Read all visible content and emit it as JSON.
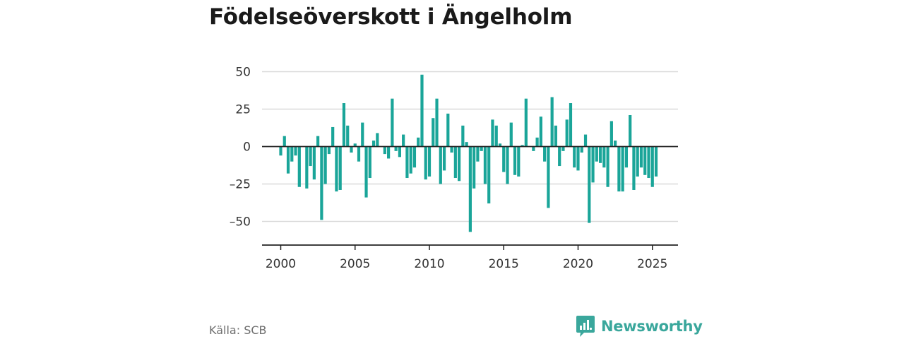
{
  "title": "Födelseöverskott i Ängelholm",
  "source": "Källa: SCB",
  "brand": {
    "name": "Newsworthy",
    "icon": "newsworthy-logo-icon",
    "color": "#3aa79c"
  },
  "colors": {
    "bar": "#1aa599",
    "grid": "#d9d9d9",
    "axis": "#222222"
  },
  "chart_data": {
    "type": "bar",
    "title": "Födelseöverskott i Ängelholm",
    "xlabel": "",
    "ylabel": "",
    "x_ticks": [
      "2000",
      "2005",
      "2010",
      "2015",
      "2020",
      "2025"
    ],
    "y_ticks": [
      "50",
      "25",
      "0",
      "–25",
      "–50"
    ],
    "ylim": [
      -65,
      55
    ],
    "grid": true,
    "granularity": "quarterly",
    "series": [
      {
        "x": [
          "2000Q1",
          "2000Q2",
          "2000Q3",
          "2000Q4",
          "2001Q1",
          "2001Q2",
          "2001Q3",
          "2001Q4",
          "2002Q1",
          "2002Q2",
          "2002Q3",
          "2002Q4",
          "2003Q1",
          "2003Q2",
          "2003Q3",
          "2003Q4",
          "2004Q1",
          "2004Q2",
          "2004Q3",
          "2004Q4",
          "2005Q1",
          "2005Q2",
          "2005Q3",
          "2005Q4",
          "2006Q1",
          "2006Q2",
          "2006Q3",
          "2006Q4",
          "2007Q1",
          "2007Q2",
          "2007Q3",
          "2007Q4",
          "2008Q1",
          "2008Q2",
          "2008Q3",
          "2008Q4",
          "2009Q1",
          "2009Q2",
          "2009Q3",
          "2009Q4",
          "2010Q1",
          "2010Q2",
          "2010Q3",
          "2010Q4",
          "2011Q1",
          "2011Q2",
          "2011Q3",
          "2011Q4",
          "2012Q1",
          "2012Q2",
          "2012Q3",
          "2012Q4",
          "2013Q1",
          "2013Q2",
          "2013Q3",
          "2013Q4",
          "2014Q1",
          "2014Q2",
          "2014Q3",
          "2014Q4",
          "2015Q1",
          "2015Q2",
          "2015Q3",
          "2015Q4",
          "2016Q1",
          "2016Q2",
          "2016Q3",
          "2016Q4",
          "2017Q1",
          "2017Q2",
          "2017Q3",
          "2017Q4",
          "2018Q1",
          "2018Q2",
          "2018Q3",
          "2018Q4",
          "2019Q1",
          "2019Q2",
          "2019Q3",
          "2019Q4",
          "2020Q1",
          "2020Q2",
          "2020Q3",
          "2020Q4",
          "2021Q1",
          "2021Q2",
          "2021Q3",
          "2021Q4",
          "2022Q1",
          "2022Q2",
          "2022Q3",
          "2022Q4",
          "2023Q1",
          "2023Q2",
          "2023Q3",
          "2023Q4",
          "2024Q1",
          "2024Q2",
          "2024Q3",
          "2024Q4",
          "2025Q1",
          "2025Q2"
        ],
        "values": [
          -6,
          7,
          -18,
          -10,
          -6,
          -27,
          0,
          -28,
          -13,
          -22,
          7,
          -49,
          -25,
          -5,
          13,
          -30,
          -29,
          29,
          14,
          -4,
          2,
          -10,
          16,
          -34,
          -21,
          4,
          9,
          0,
          -5,
          -8,
          32,
          -3,
          -7,
          8,
          -21,
          -18,
          -14,
          6,
          48,
          -22,
          -20,
          19,
          32,
          -25,
          -16,
          22,
          -4,
          -21,
          -23,
          14,
          3,
          -57,
          -28,
          -10,
          -3,
          -25,
          -38,
          18,
          14,
          2,
          -17,
          -25,
          16,
          -19,
          -20,
          1,
          32,
          0,
          -3,
          6,
          20,
          -10,
          -41,
          33,
          14,
          -13,
          -3,
          18,
          29,
          -14,
          -16,
          -4,
          8,
          -51,
          -24,
          -10,
          -11,
          -14,
          -27,
          17,
          4,
          -30,
          -30,
          -14,
          21,
          -29,
          -20,
          -14,
          -19,
          -21,
          -27,
          -20
        ]
      }
    ]
  }
}
